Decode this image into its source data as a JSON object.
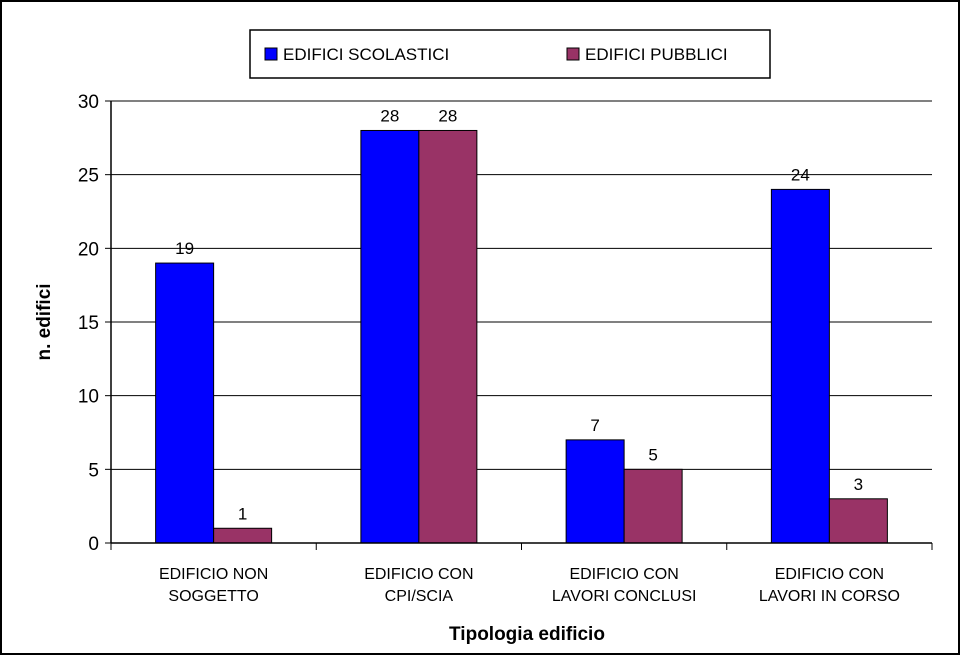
{
  "chart_data": {
    "type": "bar",
    "categories": [
      [
        "EDIFICIO NON",
        "SOGGETTO"
      ],
      [
        "EDIFICIO CON",
        "CPI/SCIA"
      ],
      [
        "EDIFICIO CON",
        "LAVORI CONCLUSI"
      ],
      [
        "EDIFICIO CON",
        "LAVORI IN CORSO"
      ]
    ],
    "series": [
      {
        "name": "EDIFICI SCOLASTICI",
        "color": "#0000ff",
        "values": [
          19,
          28,
          7,
          24
        ]
      },
      {
        "name": "EDIFICI PUBBLICI",
        "color": "#993366",
        "values": [
          1,
          28,
          5,
          3
        ]
      }
    ],
    "xlabel": "Tipologia edificio",
    "ylabel": "n. edifici",
    "ylim": [
      0,
      30
    ],
    "yticks": [
      0,
      5,
      10,
      15,
      20,
      25,
      30
    ],
    "grid": true,
    "legend_position": "top"
  }
}
